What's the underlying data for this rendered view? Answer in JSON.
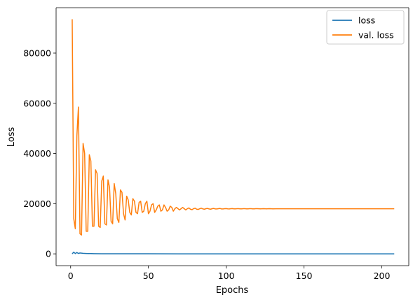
{
  "chart_data": {
    "type": "line",
    "xlabel": "Epochs",
    "ylabel": "Loss",
    "xlim": [
      -9.35,
      217.35
    ],
    "ylim": [
      -4700,
      98100
    ],
    "x_ticks": [
      0,
      50,
      100,
      150,
      200
    ],
    "x_tick_labels": [
      "0",
      "50",
      "100",
      "150",
      "200"
    ],
    "y_ticks": [
      0,
      20000,
      40000,
      60000,
      80000
    ],
    "y_tick_labels": [
      "0",
      "20000",
      "40000",
      "60000",
      "80000"
    ],
    "grid": false,
    "legend_position": "top-right",
    "series": [
      {
        "name": "loss",
        "color": "#1f77b4",
        "x": [
          1,
          2,
          3,
          4,
          5,
          6,
          8,
          10,
          15,
          20,
          30,
          50,
          100,
          150,
          200,
          208
        ],
        "y": [
          0,
          700,
          100,
          550,
          150,
          350,
          200,
          150,
          80,
          50,
          30,
          20,
          10,
          10,
          10,
          10
        ]
      },
      {
        "name": "val. loss",
        "color": "#ff7f0e",
        "x": [
          1,
          2,
          3,
          4,
          5,
          6,
          7,
          8,
          9,
          10,
          11,
          12,
          13,
          14,
          15,
          16,
          17,
          18,
          19,
          20,
          21,
          22,
          23,
          24,
          25,
          26,
          27,
          28,
          29,
          30,
          31,
          32,
          33,
          34,
          35,
          36,
          37,
          38,
          39,
          40,
          41,
          42,
          43,
          44,
          45,
          46,
          47,
          48,
          49,
          50,
          51,
          52,
          53,
          54,
          55,
          56,
          57,
          58,
          59,
          60,
          61,
          62,
          63,
          64,
          65,
          66,
          67,
          68,
          69,
          70,
          71,
          72,
          73,
          74,
          75,
          76,
          77,
          78,
          79,
          80,
          81,
          82,
          83,
          84,
          85,
          86,
          87,
          88,
          89,
          90,
          91,
          92,
          93,
          94,
          95,
          96,
          97,
          98,
          99,
          100,
          101,
          102,
          103,
          104,
          105,
          106,
          107,
          108,
          109,
          110,
          111,
          112,
          113,
          114,
          115,
          116,
          117,
          118,
          119,
          120,
          122,
          124,
          126,
          128,
          130,
          132,
          134,
          136,
          138,
          140,
          145,
          150,
          155,
          160,
          170,
          180,
          190,
          200,
          208
        ],
        "y": [
          93500,
          14000,
          10000,
          47000,
          58500,
          8000,
          7500,
          44000,
          40000,
          9000,
          9000,
          39500,
          37000,
          11000,
          11000,
          33500,
          32000,
          11000,
          10500,
          29000,
          31000,
          12000,
          11500,
          29500,
          26500,
          13000,
          12000,
          28000,
          24000,
          14000,
          12500,
          25500,
          24500,
          16000,
          13500,
          23000,
          21500,
          16500,
          15500,
          22000,
          21000,
          16500,
          16000,
          20500,
          21000,
          16500,
          17000,
          20000,
          21000,
          16000,
          17000,
          19500,
          20000,
          16500,
          17500,
          19000,
          19500,
          17000,
          17500,
          19500,
          18500,
          17000,
          17500,
          19000,
          18500,
          17000,
          18000,
          18500,
          18000,
          17500,
          18000,
          18500,
          18000,
          17500,
          18000,
          18300,
          17800,
          17600,
          18000,
          18200,
          17800,
          17700,
          18000,
          18200,
          17900,
          17800,
          18000,
          18100,
          17900,
          17800,
          18000,
          18100,
          17900,
          17900,
          18000,
          18100,
          17900,
          17900,
          18000,
          18050,
          17950,
          17900,
          18000,
          18050,
          17950,
          17950,
          18000,
          18000,
          17950,
          17950,
          18000,
          18000,
          17950,
          17950,
          18000,
          18000,
          17950,
          17950,
          18000,
          18000,
          17950,
          18000,
          17950,
          18000,
          17950,
          17975,
          17975,
          17975,
          17975,
          17975,
          17975,
          17975,
          17975,
          17975,
          17975,
          17975,
          17975,
          17975,
          17975
        ]
      }
    ]
  }
}
